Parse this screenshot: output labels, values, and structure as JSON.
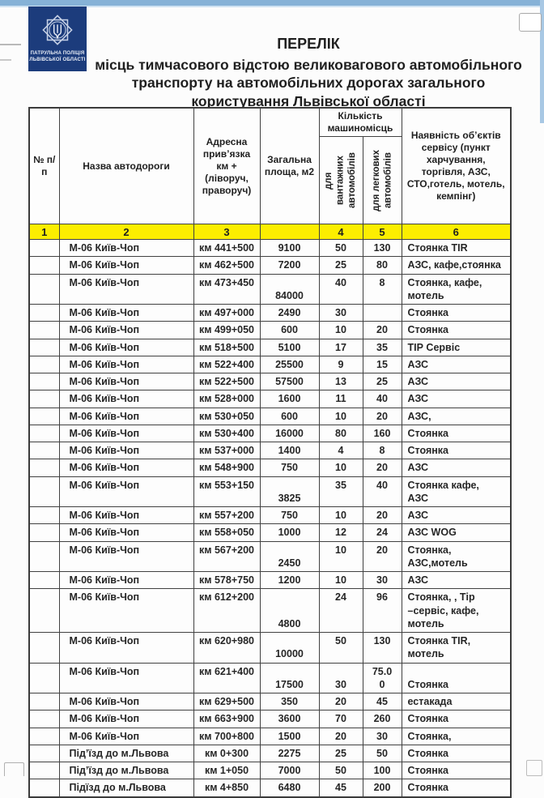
{
  "page": {
    "logo": {
      "line1": "ПАТРУЛЬНА ПОЛІЦІЯ",
      "line2": "ЛЬВІВСЬКОЇ ОБЛАСТІ"
    },
    "title": "ПЕРЕЛІК",
    "subtitle": "місць тимчасового відстою великовагового автомобільного транспорту на автомобільних дорогах загального користування Львівської області"
  },
  "colors": {
    "accent_bar": "#86b2d7",
    "right_bar": "#a8c8e4",
    "logo_bg": "#1c3c7c",
    "highlight_yellow": "#fcee00",
    "border": "#414141"
  },
  "table": {
    "headers": {
      "num": "№ п/п",
      "road": "Назва автодороги",
      "address": "Адресна прив’язка км + (ліворуч, праворуч)",
      "area": "Загальна площа, м2",
      "capacity_group": "Кількість машиномісць",
      "trucks": "для вантажних автомобілів",
      "cars": "для легкових автомобілів",
      "service": "Наявність об’єктів сервісу (пункт харчування, торгівля, АЗС, СТО,готель, мотель, кемпінг)"
    },
    "column_numbers": [
      "1",
      "2",
      "3",
      "",
      "4",
      "5",
      "6"
    ],
    "rows": [
      {
        "road": "М-06 Київ-Чоп",
        "km": "км 441+500",
        "area": "9100",
        "trucks": "50",
        "cars": "130",
        "service": "Стоянка TIR"
      },
      {
        "road": "М-06 Київ-Чоп",
        "km": "км 462+500",
        "area": "7200",
        "trucks": "25",
        "cars": "80",
        "service": "АЗС, кафе,стоянка"
      },
      {
        "road": "М-06 Київ-Чоп",
        "km": "км 473+450",
        "area": "84000",
        "trucks": "40",
        "cars": "8",
        "service": "Стоянка, кафе,\nмотель",
        "tall": true
      },
      {
        "road": "М-06 Київ-Чоп",
        "km": "км  497+000",
        "area": "2490",
        "trucks": "30",
        "cars": "",
        "service": "Стоянка"
      },
      {
        "road": "М-06 Київ-Чоп",
        "km": "км 499+050",
        "area": "600",
        "trucks": "10",
        "cars": "20",
        "service": "Стоянка"
      },
      {
        "road": "М-06 Київ-Чоп",
        "km": "км 518+500",
        "area": "5100",
        "trucks": "17",
        "cars": "35",
        "service": "ТІР Сервіс"
      },
      {
        "road": "М-06 Київ-Чоп",
        "km": "км 522+400",
        "area": "25500",
        "trucks": "9",
        "cars": "15",
        "service": "АЗС"
      },
      {
        "road": "М-06 Київ-Чоп",
        "km": "км 522+500",
        "area": "57500",
        "trucks": "13",
        "cars": "25",
        "service": "АЗС"
      },
      {
        "road": "М-06 Київ-Чоп",
        "km": "км 528+000",
        "area": "1600",
        "trucks": "11",
        "cars": "40",
        "service": "АЗС"
      },
      {
        "road": "М-06 Київ-Чоп",
        "km": "км 530+050",
        "area": "600",
        "trucks": "10",
        "cars": "20",
        "service": "АЗС,"
      },
      {
        "road": "М-06 Київ-Чоп",
        "km": "км 530+400",
        "area": "16000",
        "trucks": "80",
        "cars": "160",
        "service": "Стоянка"
      },
      {
        "road": "М-06 Київ-Чоп",
        "km": "км 537+000",
        "area": "1400",
        "trucks": "4",
        "cars": "8",
        "service": "Стоянка"
      },
      {
        "road": "М-06 Київ-Чоп",
        "km": "км 548+900",
        "area": "750",
        "trucks": "10",
        "cars": "20",
        "service": "АЗС"
      },
      {
        "road": "М-06 Київ-Чоп",
        "km": "км 553+150",
        "area": "3825",
        "trucks": "35",
        "cars": "40",
        "service": "Стоянка кафе,\nАЗС",
        "tall": true
      },
      {
        "road": "М-06 Київ-Чоп",
        "km": "км 557+200",
        "area": "750",
        "trucks": "10",
        "cars": "20",
        "service": "АЗС"
      },
      {
        "road": "М-06 Київ-Чоп",
        "km": "км 558+050",
        "area": "1000",
        "trucks": "12",
        "cars": "24",
        "service": "АЗС WOG"
      },
      {
        "road": "М-06 Київ-Чоп",
        "km": "км 567+200",
        "area": "2450",
        "trucks": "10",
        "cars": "20",
        "service": "Стоянка,\nАЗС,мотель",
        "tall": true
      },
      {
        "road": "М-06 Київ-Чоп",
        "km": "км 578+750",
        "area": "1200",
        "trucks": "10",
        "cars": "30",
        "service": "АЗС"
      },
      {
        "road": "М-06 Київ-Чоп",
        "km": "км 612+200",
        "area": "4800",
        "trucks": "24",
        "cars": "96",
        "service": "Стоянка, , Тір\n–сервіс, кафе,\nмотель",
        "tall": true
      },
      {
        "road": "М-06 Київ-Чоп",
        "km": "км 620+980",
        "area": "10000",
        "trucks": "50",
        "cars": "130",
        "service": "Стоянка TIR,\nмотель",
        "tall": true
      },
      {
        "road": "М-06 Київ-Чоп",
        "km": "км 621+400",
        "area": "17500",
        "trucks": "30",
        "cars": "75.0\n0",
        "service": "Стоянка",
        "tall": true,
        "valign": {
          "trucks": "bottom",
          "service": "bottom"
        }
      },
      {
        "road": "М-06 Київ-Чоп",
        "km": "км 629+500",
        "area": "350",
        "trucks": "20",
        "cars": "45",
        "service": "естакада"
      },
      {
        "road": "М-06 Київ-Чоп",
        "km": "км 663+900",
        "area": "3600",
        "trucks": "70",
        "cars": "260",
        "service": "Стоянка"
      },
      {
        "road": "М-06 Київ-Чоп",
        "km": "км 700+800",
        "area": "1500",
        "trucks": "20",
        "cars": "30",
        "service": "Стоянка,"
      },
      {
        "road": "Під’їзд до м.Львова",
        "km": "км 0+300",
        "area": "2275",
        "trucks": "25",
        "cars": "50",
        "service": "Стоянка"
      },
      {
        "road": "Під’їзд до м.Львова",
        "km": "км 1+050",
        "area": "7000",
        "trucks": "50",
        "cars": "100",
        "service": "Стоянка"
      },
      {
        "road": "Підїзд до м.Львова",
        "km": "км 4+850",
        "area": "6480",
        "trucks": "45",
        "cars": "200",
        "service": "Стоянка"
      }
    ]
  }
}
